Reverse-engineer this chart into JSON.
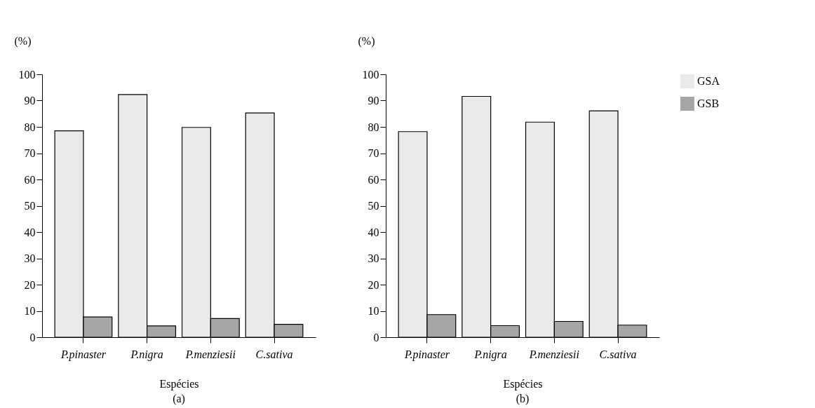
{
  "chart_data": [
    {
      "type": "bar",
      "title": "(a)",
      "xlabel": "Espécies",
      "ylabel": "(%)",
      "categories": [
        "P.pinaster",
        "P.nigra",
        "P.menziesii",
        "C.sativa"
      ],
      "series": [
        {
          "color": "#eaeaea",
          "values": [
            78.5,
            92.3,
            79.8,
            85.3
          ]
        },
        {
          "color": "#a6a6a6",
          "values": [
            7.7,
            4.3,
            7.1,
            4.9
          ]
        }
      ],
      "ylim": [
        0,
        100
      ],
      "yticks": [
        0,
        10,
        20,
        30,
        40,
        50,
        60,
        70,
        80,
        90,
        100
      ],
      "legend": false,
      "grid": false
    },
    {
      "type": "bar",
      "title": "(b)",
      "xlabel": "Espécies",
      "ylabel": "(%)",
      "categories": [
        "P.pinaster",
        "P.nigra",
        "P.menziesii",
        "C.sativa"
      ],
      "series": [
        {
          "name": "GSA",
          "color": "#eaeaea",
          "values": [
            78.2,
            91.6,
            81.8,
            86.1
          ]
        },
        {
          "name": "GSB",
          "color": "#a6a6a6",
          "values": [
            8.6,
            4.4,
            6.0,
            4.6
          ]
        }
      ],
      "ylim": [
        0,
        100
      ],
      "yticks": [
        0,
        10,
        20,
        30,
        40,
        50,
        60,
        70,
        80,
        90,
        100
      ],
      "legend": "top right",
      "grid": false
    }
  ]
}
